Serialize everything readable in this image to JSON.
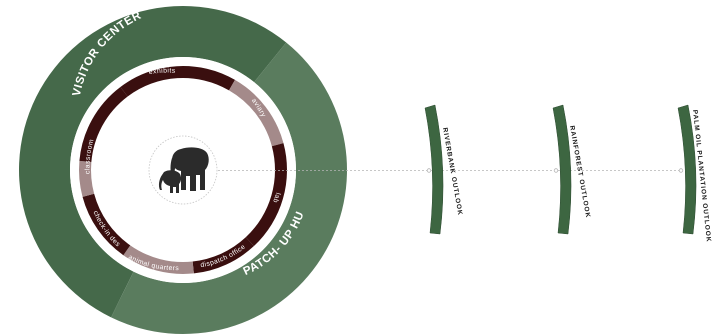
{
  "colors": {
    "ring_dark": "#45694a",
    "ring_light": "#5a7c5e",
    "segment_dark": "#3a0f0f",
    "segment_light": "#a48a8a",
    "outlook_fill": "#3d6641",
    "connector": "#b5b5b5",
    "center_circle_stroke": "#c4c4c4",
    "elephant": "#2b2b2b"
  },
  "icons": {
    "center": "elephant-family-icon"
  },
  "hub_zones": [
    {
      "id": "visitor-center",
      "label": "VISITOR CENTER"
    },
    {
      "id": "patch-up-hub",
      "label": "PATCH- UP HUB"
    }
  ],
  "segments": [
    {
      "id": "exhibits",
      "label": "exhibits",
      "tone": "dark"
    },
    {
      "id": "aviary",
      "label": "aviary",
      "tone": "light"
    },
    {
      "id": "lab",
      "label": "lab",
      "tone": "dark"
    },
    {
      "id": "dispatch-office",
      "label": "dispatch office",
      "tone": "dark"
    },
    {
      "id": "animal-quarters",
      "label": "animal quarters",
      "tone": "light"
    },
    {
      "id": "check-in-desk",
      "label": "check-in desk",
      "tone": "dark"
    },
    {
      "id": "entrance",
      "label": "",
      "tone": "light"
    },
    {
      "id": "classroom",
      "label": "classroom",
      "tone": "dark"
    }
  ],
  "outlooks": [
    {
      "id": "riverbank",
      "label": "RIVERBANK OUTLOOK"
    },
    {
      "id": "rainforest",
      "label": "RAINFOREST OUTLOOK"
    },
    {
      "id": "palm-oil",
      "label": "PALM OIL PLANTATION OUTLOOK"
    }
  ]
}
